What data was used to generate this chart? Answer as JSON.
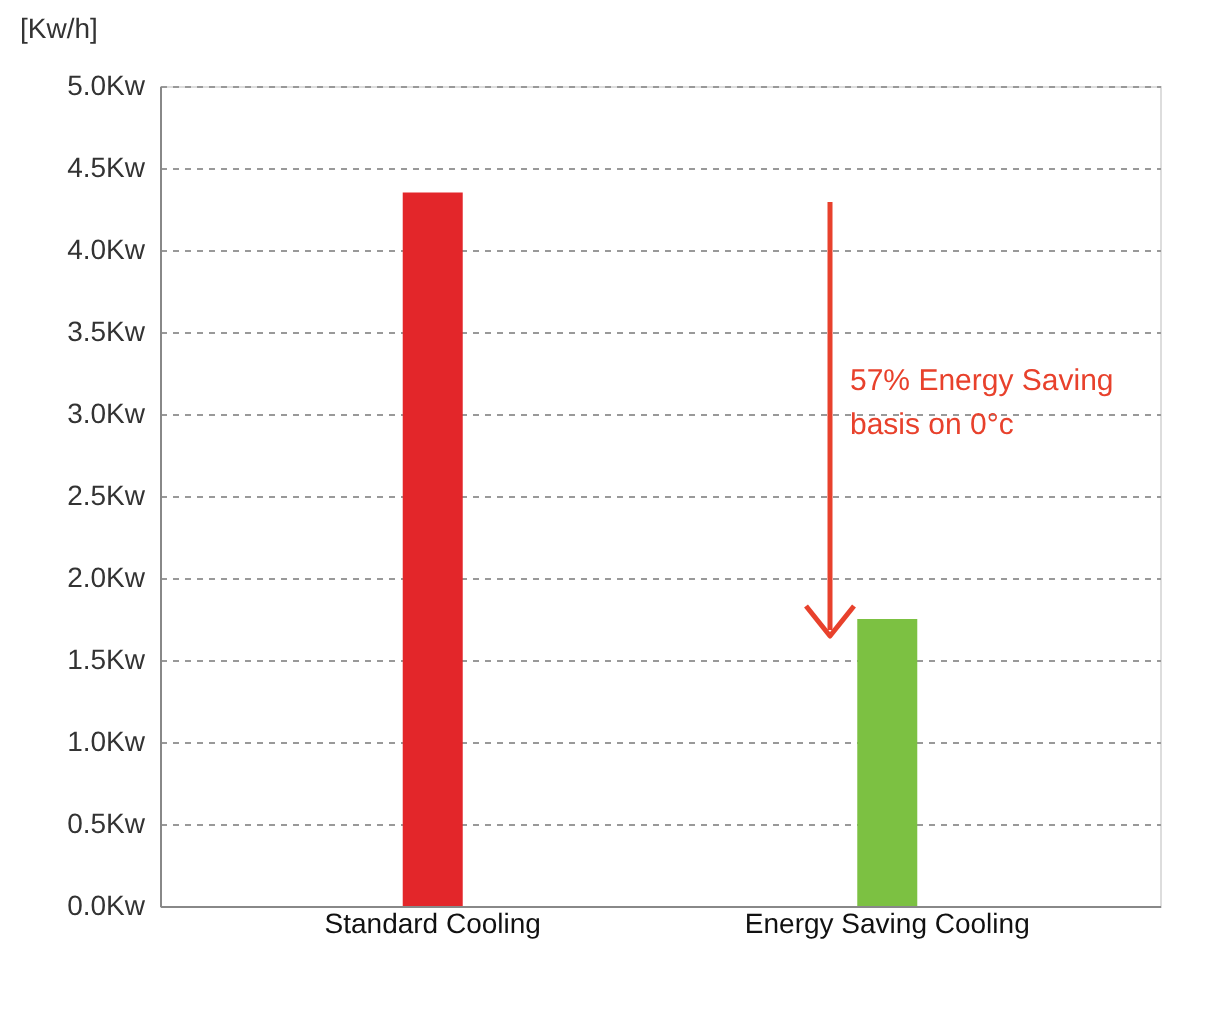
{
  "chart_data": {
    "type": "bar",
    "ylabel": "[Kw/h]",
    "categories": [
      "Standard Cooling",
      "Energy Saving Cooling"
    ],
    "values": [
      4.35,
      1.75
    ],
    "colors": [
      "#e3262a",
      "#7cc142"
    ],
    "ylim": [
      0,
      5
    ],
    "yticks": [
      {
        "value": 0,
        "label": "0.0Kw"
      },
      {
        "value": 0.5,
        "label": "0.5Kw"
      },
      {
        "value": 1,
        "label": "1.0Kw"
      },
      {
        "value": 1.5,
        "label": "1.5Kw"
      },
      {
        "value": 2,
        "label": "2.0Kw"
      },
      {
        "value": 2.5,
        "label": "2.5Kw"
      },
      {
        "value": 3,
        "label": "3.0Kw"
      },
      {
        "value": 3.5,
        "label": "3.5Kw"
      },
      {
        "value": 4,
        "label": "4.0Kw"
      },
      {
        "value": 4.5,
        "label": "4.5Kw"
      },
      {
        "value": 5,
        "label": "5.0Kw"
      }
    ],
    "grid": "y",
    "legend": false,
    "annotations": [
      "57% Energy Saving\nbasis on 0°c"
    ]
  }
}
